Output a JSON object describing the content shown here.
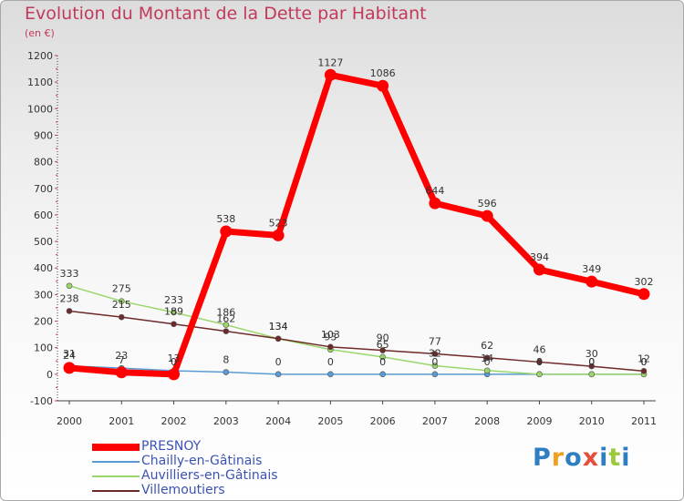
{
  "header": {
    "title": "Evolution du Montant de la Dette par Habitant",
    "subtitle": "(en €)"
  },
  "chart_data": {
    "type": "line",
    "title": "Evolution du Montant de la Dette par Habitant",
    "ylabel": "(en €)",
    "xlabel": "",
    "x": [
      "2000",
      "2001",
      "2002",
      "2003",
      "2004",
      "2005",
      "2006",
      "2007",
      "2008",
      "2009",
      "2010",
      "2011"
    ],
    "ylim": [
      -100,
      1200
    ],
    "yticks": [
      -100,
      0,
      100,
      200,
      300,
      400,
      500,
      600,
      700,
      800,
      900,
      1000,
      1100,
      1200
    ],
    "grid": false,
    "series": [
      {
        "name": "PRESNOY",
        "color": "#ff0000",
        "values": [
          24,
          7,
          0,
          538,
          523,
          1127,
          1086,
          644,
          596,
          394,
          349,
          302
        ],
        "labels": [
          "24",
          "7",
          "0",
          "538",
          "523",
          "1127",
          "1086",
          "644",
          "596",
          "394",
          "349",
          "302"
        ]
      },
      {
        "name": "Chailly-en-Gâtinais",
        "color": "#5b9bd5",
        "values": [
          31,
          23,
          13,
          8,
          0,
          0,
          0,
          0,
          0,
          0,
          0,
          0
        ],
        "labels": [
          "31",
          "23",
          "13",
          "8",
          "0",
          "0",
          "0",
          "0",
          "0",
          "0",
          "0",
          "0"
        ]
      },
      {
        "name": "Auvilliers-en-Gâtinais",
        "color": "#9ad66c",
        "values": [
          333,
          275,
          233,
          186,
          134,
          93,
          65,
          32,
          14,
          0,
          0,
          0
        ],
        "labels": [
          "333",
          "275",
          "233",
          "186",
          "134",
          "93",
          "65",
          "32",
          "14",
          "0",
          "0",
          "0"
        ]
      },
      {
        "name": "Villemoutiers",
        "color": "#6e2a2a",
        "values": [
          238,
          215,
          189,
          162,
          134,
          103,
          90,
          77,
          62,
          46,
          30,
          12
        ],
        "labels": [
          "238",
          "215",
          "189",
          "162",
          "134",
          "103",
          "90",
          "77",
          "62",
          "46",
          "30",
          "12"
        ]
      }
    ],
    "legend_position": "bottom-left"
  },
  "legend": [
    {
      "label": "PRESNOY",
      "color": "#ff0000"
    },
    {
      "label": "Chailly-en-Gâtinais",
      "color": "#5b9bd5"
    },
    {
      "label": "Auvilliers-en-Gâtinais",
      "color": "#9ad66c"
    },
    {
      "label": "Villemoutiers",
      "color": "#6e2a2a"
    }
  ],
  "logo": {
    "text": "Proxiti",
    "letter_colors": [
      "#2e7fc2",
      "#f0a020",
      "#2e7fc2",
      "#e74c3c",
      "#2e7fc2",
      "#9bc83c",
      "#2e7fc2"
    ]
  }
}
